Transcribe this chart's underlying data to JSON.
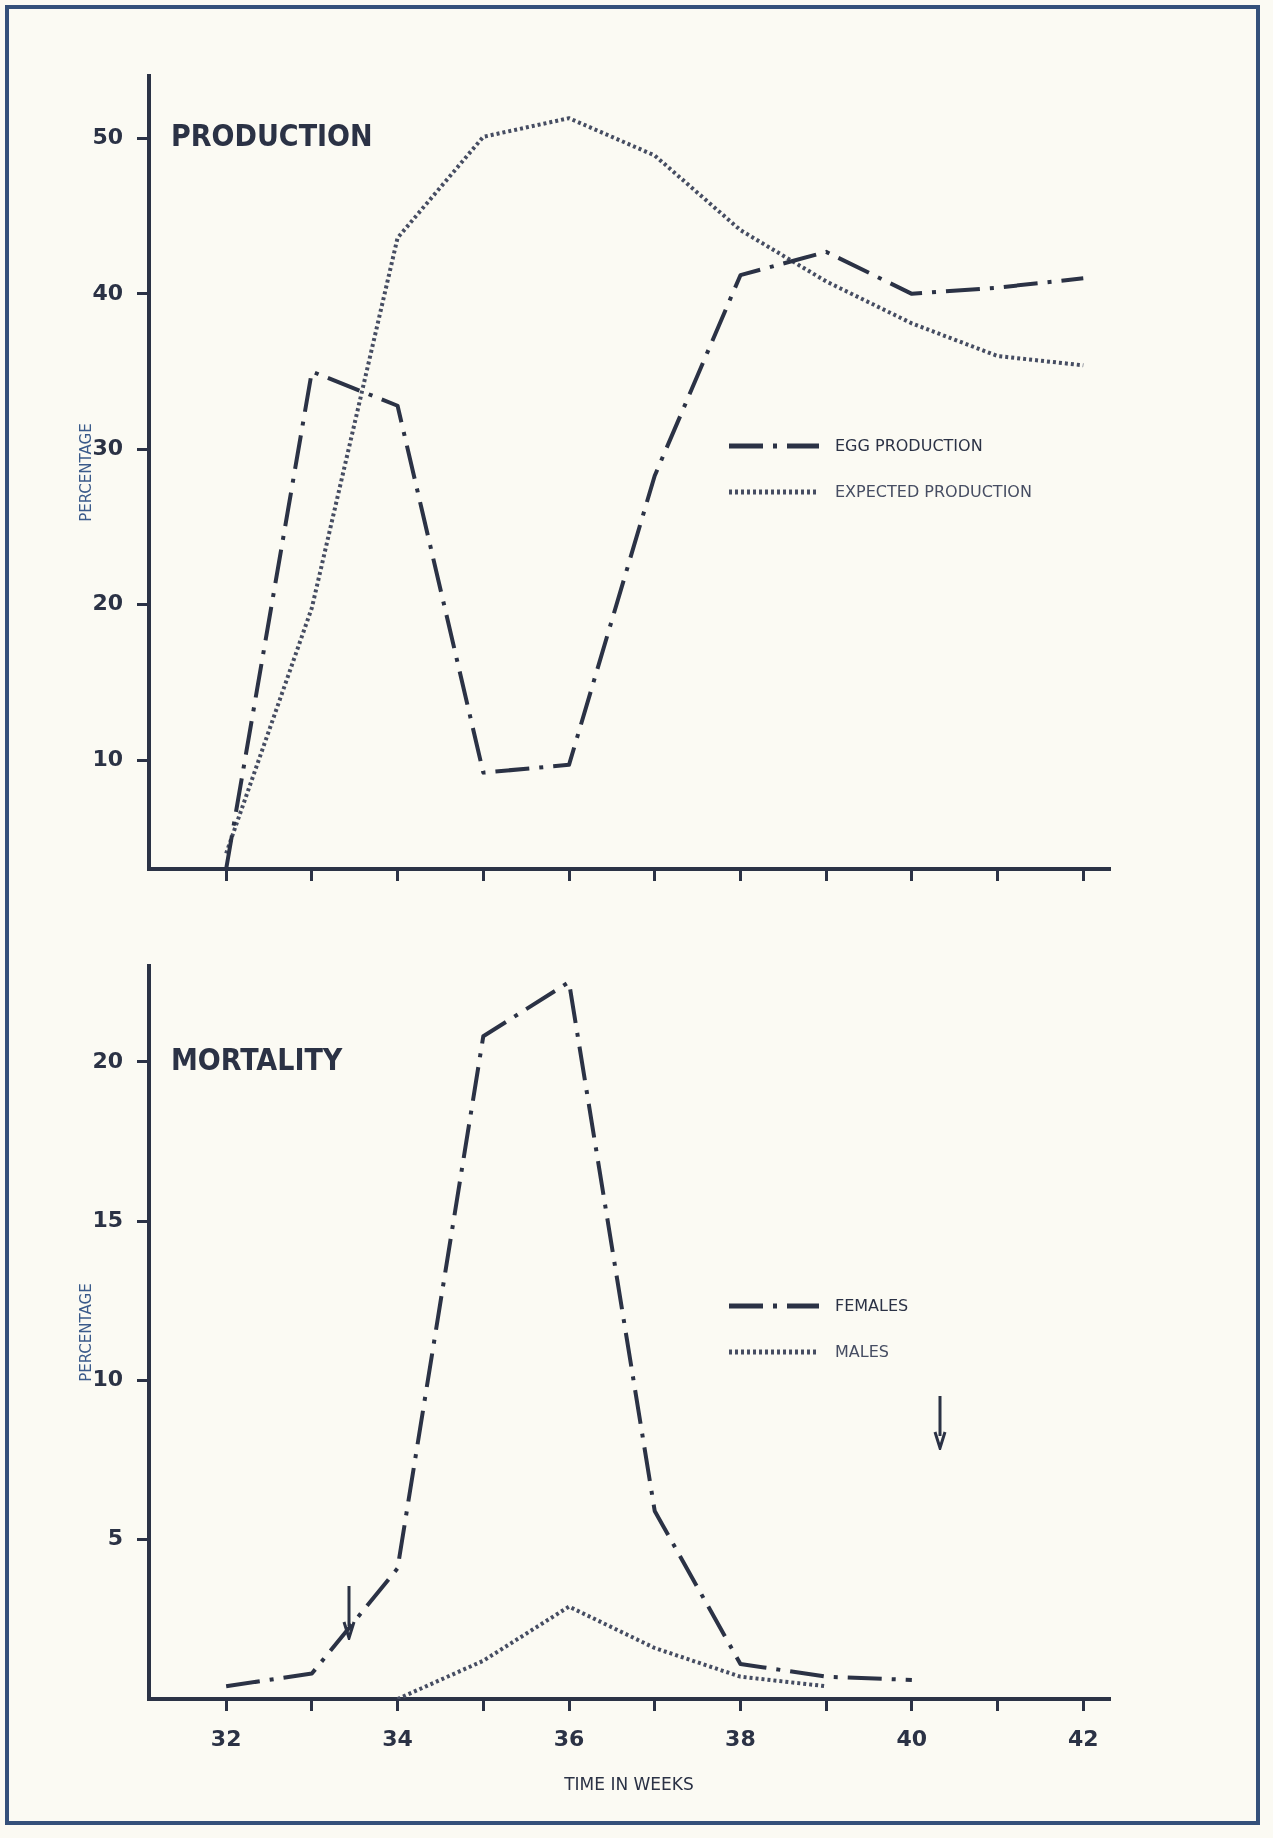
{
  "chart_data": [
    {
      "type": "line",
      "title": "PRODUCTION",
      "ylabel": "PERCENTAGE",
      "x": [
        32,
        33,
        34,
        35,
        36,
        37,
        38,
        39,
        40,
        41,
        42
      ],
      "xlim": [
        31.1,
        42.3
      ],
      "xticks": [
        {
          "value": 32,
          "label": null
        },
        {
          "value": 33,
          "label": null
        },
        {
          "value": 34,
          "label": null
        },
        {
          "value": 35,
          "label": null
        },
        {
          "value": 36,
          "label": null
        },
        {
          "value": 37,
          "label": null
        },
        {
          "value": 38,
          "label": null
        },
        {
          "value": 39,
          "label": null
        },
        {
          "value": 40,
          "label": null
        },
        {
          "value": 41,
          "label": null
        },
        {
          "value": 42,
          "label": null
        }
      ],
      "ylim": [
        3,
        54
      ],
      "yticks": [
        10,
        20,
        30,
        40,
        50
      ],
      "tick_labels": "y",
      "legend": "right",
      "marker": "none",
      "series": [
        {
          "name": "EGG PRODUCTION",
          "color": "#2b3245",
          "line_style": "dashdot",
          "values": [
            3,
            35,
            32.8,
            9.2,
            9.7,
            28.3,
            41.2,
            42.7,
            40,
            40.4,
            41
          ]
        },
        {
          "name": "EXPECTED PRODUCTION",
          "color": "#464d62",
          "line_style": "dotted",
          "values": [
            4,
            19.8,
            43.6,
            50.1,
            51.3,
            48.9,
            44.1,
            40.8,
            38.1,
            36,
            35.4
          ]
        }
      ]
    },
    {
      "type": "line",
      "title": "MORTALITY",
      "ylabel": "PERCENTAGE",
      "xlabel": "TIME IN WEEKS",
      "x": [
        32,
        33,
        34,
        35,
        36,
        37,
        38,
        39,
        40
      ],
      "xlim": [
        31.1,
        42.3
      ],
      "xticks": [
        32,
        {
          "value": 33,
          "label": null
        },
        34,
        {
          "value": 35,
          "label": null
        },
        36,
        {
          "value": 37,
          "label": null
        },
        38,
        {
          "value": 39,
          "label": null
        },
        40,
        {
          "value": 41,
          "label": null
        },
        42
      ],
      "ylim": [
        0,
        23
      ],
      "yticks": [
        5,
        10,
        15,
        20
      ],
      "legend": "right",
      "marker": "none",
      "series": [
        {
          "name": "FEMALES",
          "color": "#2b3245",
          "line_style": "dashdot",
          "values": [
            0.4,
            0.8,
            4.1,
            20.8,
            22.5,
            5.9,
            1.1,
            0.7,
            0.6
          ]
        },
        {
          "name": "MALES",
          "color": "#464d62",
          "line_style": "dotted",
          "values": [
            null,
            null,
            0,
            1.2,
            2.9,
            1.6,
            0.7,
            0.4,
            null
          ]
        }
      ]
    }
  ]
}
